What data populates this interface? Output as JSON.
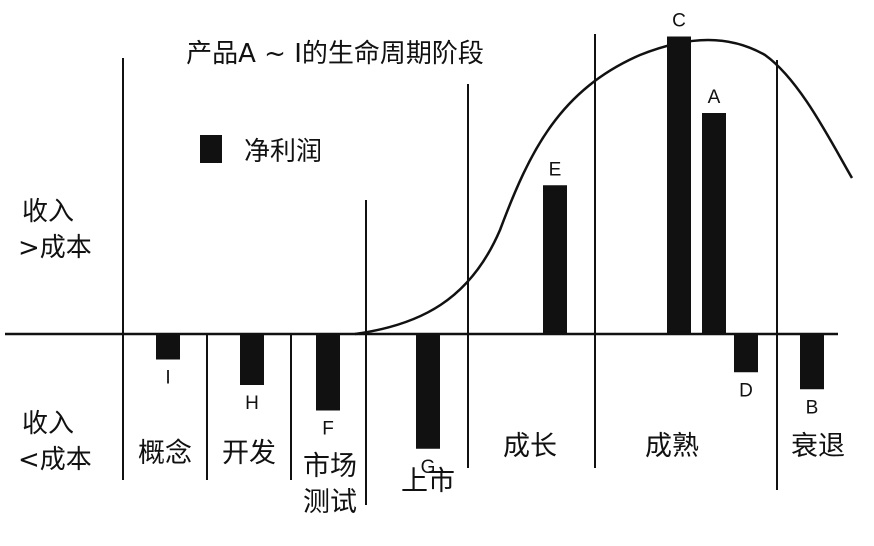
{
  "chart_data": {
    "type": "bar",
    "title": "产品A ~ I的生命周期阶段",
    "legend": {
      "label": "净利润",
      "color": "#111111",
      "placement": "top-left"
    },
    "y_labels": {
      "positive": [
        "收入",
        ">成本"
      ],
      "negative": [
        "收入",
        "<成本"
      ]
    },
    "stages": [
      {
        "label": [
          "概念"
        ]
      },
      {
        "label": [
          "开发"
        ]
      },
      {
        "label": [
          "市场",
          "测试"
        ]
      },
      {
        "label": [
          "上市"
        ]
      },
      {
        "label": [
          "成长"
        ]
      },
      {
        "label": [
          "成熟"
        ]
      },
      {
        "label": [
          "衰退"
        ]
      }
    ],
    "categories": [
      "I",
      "H",
      "F",
      "G",
      "E",
      "C",
      "A",
      "D",
      "B"
    ],
    "series": [
      {
        "values": [
          -0.3,
          -0.6,
          -0.9,
          -1.35,
          1.75,
          3.5,
          2.6,
          -0.45,
          -0.65
        ]
      }
    ],
    "product_stage": [
      "概念",
      "开发",
      "市场测试",
      "上市",
      "成长",
      "成熟",
      "成熟",
      "成熟",
      "衰退"
    ],
    "curve": "lifecycle-s-curve",
    "grid": false
  }
}
